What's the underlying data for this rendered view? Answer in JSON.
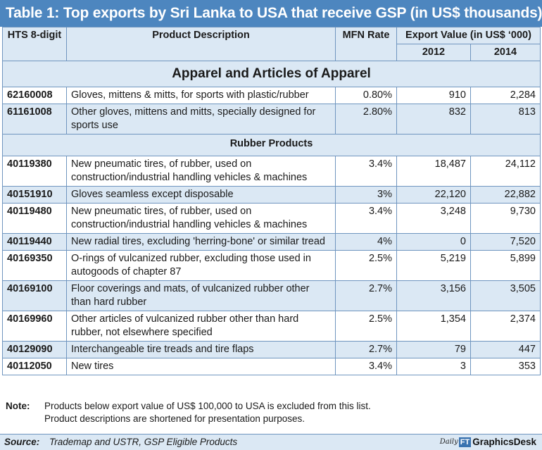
{
  "chart_data": {
    "type": "table",
    "title": "Table 1: Top exports by Sri Lanka to USA that receive GSP (in US$ thousands)",
    "headers": {
      "hts": "HTS 8-digit",
      "description": "Product Description",
      "mfn": "MFN Rate",
      "export_group": "Export Value (in US$ ‘000)",
      "y2012": "2012",
      "y2014": "2014"
    },
    "sections": [
      {
        "title": "Apparel and Articles of Apparel",
        "rows": [
          {
            "hts": "62160008",
            "description": "Gloves, mittens & mitts, for sports with plastic/rubber",
            "mfn": "0.80%",
            "v2012": "910",
            "v2014": "2,284"
          },
          {
            "hts": "61161008",
            "description": "Other gloves, mittens and mitts, specially designed for sports use",
            "mfn": "2.80%",
            "v2012": "832",
            "v2014": "813"
          }
        ]
      },
      {
        "title": "Rubber Products",
        "rows": [
          {
            "hts": "40119380",
            "description": "New pneumatic tires, of rubber, used on construction/industrial handling vehicles & machines",
            "mfn": "3.4%",
            "v2012": "18,487",
            "v2014": "24,112"
          },
          {
            "hts": "40151910",
            "description": "Gloves seamless except disposable",
            "mfn": "3%",
            "v2012": "22,120",
            "v2014": "22,882"
          },
          {
            "hts": "40119480",
            "description": "New pneumatic tires, of rubber, used on construction/industrial handling vehicles & machines",
            "mfn": "3.4%",
            "v2012": "3,248",
            "v2014": "9,730"
          },
          {
            "hts": "40119440",
            "description": "New radial tires, excluding 'herring-bone' or similar tread",
            "mfn": "4%",
            "v2012": "0",
            "v2014": "7,520"
          },
          {
            "hts": "40169350",
            "description": "O-rings of vulcanized rubber, excluding those used in autogoods of chapter 87",
            "mfn": "2.5%",
            "v2012": "5,219",
            "v2014": "5,899"
          },
          {
            "hts": "40169100",
            "description": "Floor coverings and mats, of vulcanized rubber other than hard rubber",
            "mfn": "2.7%",
            "v2012": "3,156",
            "v2014": "3,505"
          },
          {
            "hts": "40169960",
            "description": "Other articles of vulcanized rubber other than hard rubber, not elsewhere specified",
            "mfn": "2.5%",
            "v2012": "1,354",
            "v2014": "2,374"
          },
          {
            "hts": "40129090",
            "description": "Interchangeable tire treads and tire flaps",
            "mfn": "2.7%",
            "v2012": "79",
            "v2014": "447"
          },
          {
            "hts": "40112050",
            "description": "New tires",
            "mfn": "3.4%",
            "v2012": "3",
            "v2014": "353"
          }
        ]
      }
    ]
  },
  "note": {
    "label": "Note:",
    "lines": [
      "Products below export value of US$ 100,000 to USA is excluded from this list.",
      "Product descriptions are shortened for presentation purposes."
    ]
  },
  "source": {
    "label": "Source:",
    "text": "Trademap and USTR, GSP Eligible Products"
  },
  "logo": {
    "daily": "Daily",
    "ft": "FT",
    "name": "GraphicsDesk"
  },
  "colors": {
    "title_bg": "#4d86bf",
    "band": "#dbe8f4",
    "border": "#6f95bf"
  }
}
